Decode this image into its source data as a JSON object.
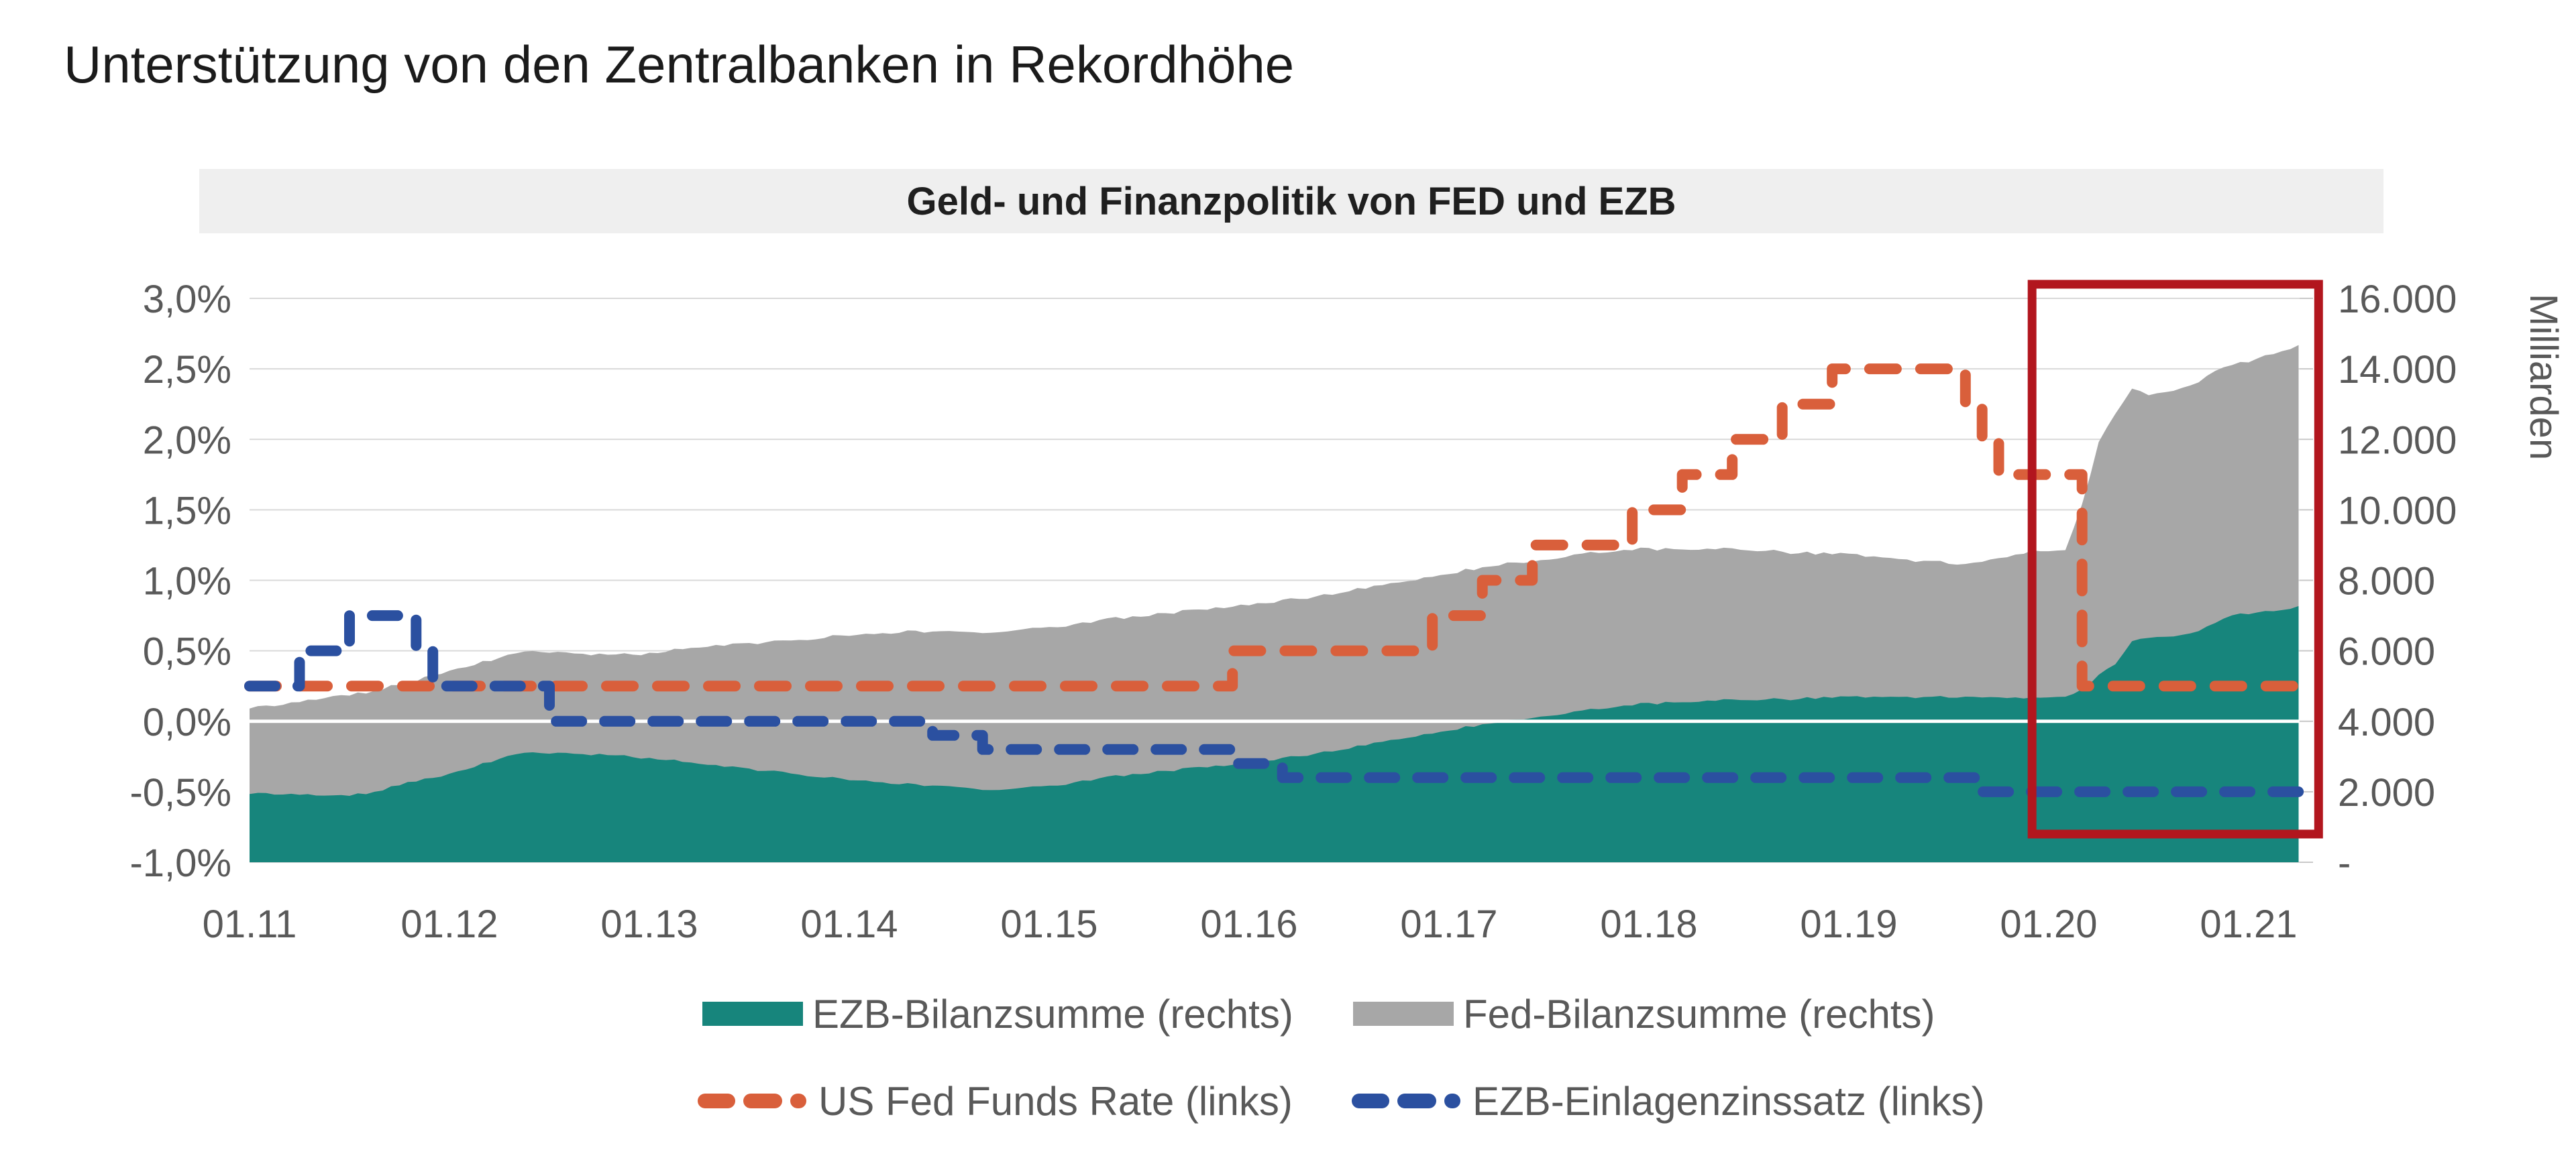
{
  "page": {
    "title": "Unterstützung von den Zentralbanken in Rekordhöhe"
  },
  "chart": {
    "title": "Geld- und Finanzpolitik von FED und EZB",
    "colors": {
      "header_bar": "#efefef",
      "gridline": "#d9d9d9",
      "zero_line": "#ffffff",
      "axis_text": "#595959",
      "highlight_box": "#b2161e"
    },
    "legend": [
      {
        "label": "EZB-Bilanzsumme (rechts)",
        "type": "area",
        "color": "#17857c"
      },
      {
        "label": "Fed-Bilanzsumme (rechts)",
        "type": "area",
        "color": "#a7a7a7"
      },
      {
        "label": "US Fed Funds Rate (links)",
        "type": "dashed-line",
        "color": "#d95f3b"
      },
      {
        "label": "EZB-Einlagenzinssatz (links)",
        "type": "dashed-line",
        "color": "#2b50a0"
      }
    ]
  },
  "chart_data": {
    "type": "area",
    "title": "Geld- und Finanzpolitik von FED und EZB",
    "x_start": "2011-01",
    "x_frequency": "monthly",
    "left_axis": {
      "label": "",
      "unit": "percent",
      "min": -1.0,
      "max": 3.0,
      "step": 0.5,
      "ticks": [
        {
          "p": 3.0,
          "label": "3,0%"
        },
        {
          "p": 2.5,
          "label": "2,5%"
        },
        {
          "p": 2.0,
          "label": "2,0%"
        },
        {
          "p": 1.5,
          "label": "1,5%"
        },
        {
          "p": 1.0,
          "label": "1,0%"
        },
        {
          "p": 0.5,
          "label": "0,5%"
        },
        {
          "p": 0.0,
          "label": "0,0%"
        },
        {
          "p": -0.5,
          "label": "-0,5%"
        },
        {
          "p": -1.0,
          "label": "-1,0%"
        }
      ]
    },
    "right_axis": {
      "label": "Milliarden",
      "min": 0,
      "max": 16000,
      "step": 2000,
      "ticks": [
        {
          "v": 16000,
          "label": "16.000"
        },
        {
          "v": 14000,
          "label": "14.000"
        },
        {
          "v": 12000,
          "label": "12.000"
        },
        {
          "v": 10000,
          "label": "10.000"
        },
        {
          "v": 8000,
          "label": "8.000"
        },
        {
          "v": 6000,
          "label": "6.000"
        },
        {
          "v": 4000,
          "label": "4.000"
        },
        {
          "v": 2000,
          "label": "2.000"
        },
        {
          "v": 0,
          "label": "-"
        }
      ]
    },
    "x_axis": {
      "ticks": [
        {
          "m": 0,
          "label": "01.11"
        },
        {
          "m": 12,
          "label": "01.12"
        },
        {
          "m": 24,
          "label": "01.13"
        },
        {
          "m": 36,
          "label": "01.14"
        },
        {
          "m": 48,
          "label": "01.15"
        },
        {
          "m": 60,
          "label": "01.16"
        },
        {
          "m": 72,
          "label": "01.17"
        },
        {
          "m": 84,
          "label": "01.18"
        },
        {
          "m": 96,
          "label": "01.19"
        },
        {
          "m": 108,
          "label": "01.20"
        },
        {
          "m": 120,
          "label": "01.21"
        }
      ]
    },
    "highlight_box": {
      "x_start_month": 107.0,
      "x_end_month": 124.2,
      "y_top_pct": 3.1,
      "y_bottom_pct": -0.8
    },
    "series": [
      {
        "name": "EZB-Bilanzsumme (rechts)",
        "axis": "right",
        "type": "area",
        "color": "#17857c",
        "values": [
          1950,
          1945,
          1935,
          1920,
          1905,
          1900,
          1905,
          1950,
          2050,
          2200,
          2300,
          2400,
          2500,
          2650,
          2800,
          2950,
          3050,
          3100,
          3100,
          3090,
          3080,
          3060,
          3030,
          3000,
          2950,
          2900,
          2850,
          2790,
          2740,
          2700,
          2650,
          2600,
          2550,
          2480,
          2430,
          2400,
          2350,
          2300,
          2260,
          2230,
          2200,
          2180,
          2150,
          2120,
          2050,
          2060,
          2100,
          2150,
          2160,
          2200,
          2300,
          2380,
          2450,
          2500,
          2540,
          2580,
          2650,
          2700,
          2740,
          2780,
          2830,
          2890,
          2950,
          3020,
          3090,
          3150,
          3240,
          3320,
          3400,
          3490,
          3580,
          3660,
          3750,
          3840,
          3900,
          3970,
          4040,
          4100,
          4170,
          4230,
          4300,
          4360,
          4420,
          4470,
          4500,
          4530,
          4550,
          4570,
          4590,
          4600,
          4610,
          4615,
          4620,
          4640,
          4655,
          4670,
          4690,
          4685,
          4690,
          4680,
          4675,
          4680,
          4680,
          4680,
          4680,
          4675,
          4670,
          4670,
          4690,
          4700,
          4900,
          5300,
          5600,
          6290,
          6350,
          6400,
          6450,
          6560,
          6780,
          7000,
          7050,
          7110,
          7170,
          7250
        ]
      },
      {
        "name": "Fed-Bilanzsumme (rechts)",
        "axis": "right",
        "type": "area-stacked",
        "color": "#a7a7a7",
        "values": [
          2430,
          2480,
          2550,
          2630,
          2720,
          2820,
          2850,
          2860,
          2870,
          2850,
          2840,
          2920,
          2920,
          2910,
          2890,
          2870,
          2860,
          2870,
          2870,
          2850,
          2850,
          2840,
          2860,
          2910,
          2980,
          3070,
          3200,
          3300,
          3400,
          3480,
          3560,
          3650,
          3720,
          3820,
          3910,
          4020,
          4100,
          4160,
          4230,
          4300,
          4350,
          4370,
          4400,
          4420,
          4450,
          4480,
          4490,
          4500,
          4500,
          4490,
          4480,
          4490,
          4480,
          4470,
          4470,
          4470,
          4480,
          4470,
          4490,
          4490,
          4460,
          4470,
          4480,
          4470,
          4460,
          4450,
          4470,
          4450,
          4440,
          4450,
          4440,
          4450,
          4450,
          4460,
          4450,
          4460,
          4450,
          4440,
          4440,
          4450,
          4450,
          4440,
          4420,
          4410,
          4390,
          4360,
          4340,
          4320,
          4300,
          4280,
          4250,
          4220,
          4180,
          4140,
          4100,
          4075,
          4050,
          4000,
          3960,
          3910,
          3870,
          3850,
          3800,
          3760,
          3850,
          3950,
          4050,
          4170,
          4150,
          4160,
          5250,
          6600,
          7100,
          7170,
          6880,
          6940,
          7010,
          7060,
          7150,
          7100,
          7150,
          7250,
          7350,
          7400
        ]
      },
      {
        "name": "US Fed Funds Rate (links)",
        "axis": "left",
        "type": "step-dashed",
        "color": "#d95f3b",
        "values": [
          0.25,
          0.25,
          0.25,
          0.25,
          0.25,
          0.25,
          0.25,
          0.25,
          0.25,
          0.25,
          0.25,
          0.25,
          0.25,
          0.25,
          0.25,
          0.25,
          0.25,
          0.25,
          0.25,
          0.25,
          0.25,
          0.25,
          0.25,
          0.25,
          0.25,
          0.25,
          0.25,
          0.25,
          0.25,
          0.25,
          0.25,
          0.25,
          0.25,
          0.25,
          0.25,
          0.25,
          0.25,
          0.25,
          0.25,
          0.25,
          0.25,
          0.25,
          0.25,
          0.25,
          0.25,
          0.25,
          0.25,
          0.25,
          0.25,
          0.25,
          0.25,
          0.25,
          0.25,
          0.25,
          0.25,
          0.25,
          0.25,
          0.25,
          0.25,
          0.5,
          0.5,
          0.5,
          0.5,
          0.5,
          0.5,
          0.5,
          0.5,
          0.5,
          0.5,
          0.5,
          0.5,
          0.75,
          0.75,
          0.75,
          1.0,
          1.0,
          1.0,
          1.25,
          1.25,
          1.25,
          1.25,
          1.25,
          1.25,
          1.5,
          1.5,
          1.5,
          1.75,
          1.75,
          1.75,
          2.0,
          2.0,
          2.0,
          2.25,
          2.25,
          2.25,
          2.5,
          2.5,
          2.5,
          2.5,
          2.5,
          2.5,
          2.5,
          2.5,
          2.25,
          2.0,
          1.75,
          1.75,
          1.75,
          1.75,
          1.75,
          0.25,
          0.25,
          0.25,
          0.25,
          0.25,
          0.25,
          0.25,
          0.25,
          0.25,
          0.25,
          0.25,
          0.25,
          0.25,
          0.25
        ]
      },
      {
        "name": "EZB-Einlagenzinssatz (links)",
        "axis": "left",
        "type": "step-dashed",
        "color": "#2b50a0",
        "values": [
          0.25,
          0.25,
          0.25,
          0.5,
          0.5,
          0.5,
          0.75,
          0.75,
          0.75,
          0.75,
          0.5,
          0.25,
          0.25,
          0.25,
          0.25,
          0.25,
          0.25,
          0.25,
          0.0,
          0.0,
          0.0,
          0.0,
          0.0,
          0.0,
          0.0,
          0.0,
          0.0,
          0.0,
          0.0,
          0.0,
          0.0,
          0.0,
          0.0,
          0.0,
          0.0,
          0.0,
          0.0,
          0.0,
          0.0,
          0.0,
          0.0,
          -0.1,
          -0.1,
          -0.1,
          -0.2,
          -0.2,
          -0.2,
          -0.2,
          -0.2,
          -0.2,
          -0.2,
          -0.2,
          -0.2,
          -0.2,
          -0.2,
          -0.2,
          -0.2,
          -0.2,
          -0.2,
          -0.3,
          -0.3,
          -0.3,
          -0.4,
          -0.4,
          -0.4,
          -0.4,
          -0.4,
          -0.4,
          -0.4,
          -0.4,
          -0.4,
          -0.4,
          -0.4,
          -0.4,
          -0.4,
          -0.4,
          -0.4,
          -0.4,
          -0.4,
          -0.4,
          -0.4,
          -0.4,
          -0.4,
          -0.4,
          -0.4,
          -0.4,
          -0.4,
          -0.4,
          -0.4,
          -0.4,
          -0.4,
          -0.4,
          -0.4,
          -0.4,
          -0.4,
          -0.4,
          -0.4,
          -0.4,
          -0.4,
          -0.4,
          -0.4,
          -0.4,
          -0.4,
          -0.4,
          -0.5,
          -0.5,
          -0.5,
          -0.5,
          -0.5,
          -0.5,
          -0.5,
          -0.5,
          -0.5,
          -0.5,
          -0.5,
          -0.5,
          -0.5,
          -0.5,
          -0.5,
          -0.5,
          -0.5,
          -0.5,
          -0.5,
          -0.5
        ]
      }
    ]
  }
}
